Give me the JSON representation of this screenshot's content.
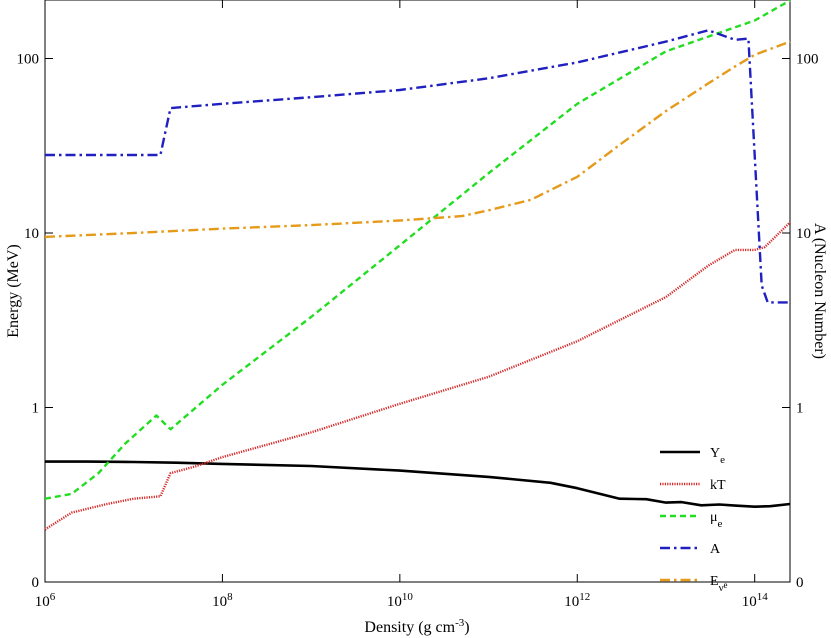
{
  "chart_data": {
    "type": "line",
    "xlabel": "Density (g cm",
    "xlabel_sup": "-3",
    "xlabel_tail": ")",
    "ylabel_left": "Energy (MeV)",
    "ylabel_right": "A (Nucleon Number)",
    "x_scale": "log",
    "y_scale": "log (zero at bottom)",
    "xlim": [
      1000000,
      250000000000000
    ],
    "x_ticks": [
      {
        "base": "10",
        "exp": "6",
        "value": 1000000
      },
      {
        "base": "10",
        "exp": "8",
        "value": 100000000
      },
      {
        "base": "10",
        "exp": "10",
        "value": 10000000000
      },
      {
        "base": "10",
        "exp": "12",
        "value": 1000000000000
      },
      {
        "base": "10",
        "exp": "14",
        "value": 100000000000000
      }
    ],
    "y_ticks_left": [
      {
        "label": "0",
        "value": 0
      },
      {
        "label": "1",
        "value": 1
      },
      {
        "label": "10",
        "value": 10
      },
      {
        "label": "100",
        "value": 100
      }
    ],
    "y_ticks_right": [
      {
        "label": "0",
        "value": 0
      },
      {
        "label": "1",
        "value": 1
      },
      {
        "label": "10",
        "value": 10
      },
      {
        "label": "100",
        "value": 100
      }
    ],
    "grid": false,
    "legend_placement": "lower-right",
    "series": [
      {
        "name": "Y",
        "name_sub": "e",
        "name_subsub": "",
        "color": "#000000",
        "dash": "solid",
        "x": [
          1000000.0,
          3000000.0,
          10000000.0,
          30000000.0,
          100000000.0,
          1000000000.0,
          10000000000.0,
          100000000000.0,
          500000000000.0,
          1000000000000.0,
          3000000000000.0,
          6000000000000.0,
          10000000000000.0,
          15000000000000.0,
          25000000000000.0,
          40000000000000.0,
          60000000000000.0,
          100000000000000.0,
          150000000000000.0,
          250000000000000.0
        ],
        "y": [
          0.49,
          0.49,
          0.487,
          0.483,
          0.475,
          0.462,
          0.435,
          0.4,
          0.37,
          0.345,
          0.3,
          0.298,
          0.285,
          0.287,
          0.275,
          0.278,
          0.274,
          0.27,
          0.272,
          0.28
        ]
      },
      {
        "name": "kT",
        "name_sub": "",
        "name_subsub": "",
        "color": "#d62728",
        "dash": "dotted",
        "x": [
          1000000.0,
          2000000.0,
          5000000.0,
          10000000.0,
          20000000.0,
          26000000.0,
          50000000.0,
          100000000.0,
          1000000000.0,
          10000000000.0,
          100000000000.0,
          1000000000000.0,
          10000000000000.0,
          30000000000000.0,
          60000000000000.0,
          100000000000000.0,
          130000000000000.0,
          250000000000000.0
        ],
        "y": [
          0.2,
          0.25,
          0.28,
          0.3,
          0.31,
          0.42,
          0.46,
          0.52,
          0.72,
          1.05,
          1.5,
          2.4,
          4.3,
          6.5,
          8.0,
          8.0,
          8.3,
          11.5
        ]
      },
      {
        "name": "μ",
        "name_sub": "e",
        "name_subsub": "",
        "color": "#22dd22",
        "dash": "dashed",
        "x": [
          1000000.0,
          2000000.0,
          4000000.0,
          8000000.0,
          18000000.0,
          26000000.0,
          100000000.0,
          1000000000.0,
          10000000000.0,
          100000000000.0,
          1000000000000.0,
          10000000000000.0,
          100000000000000.0,
          250000000000000.0
        ],
        "y": [
          0.3,
          0.32,
          0.42,
          0.62,
          0.9,
          0.75,
          1.35,
          3.3,
          8.5,
          22,
          55,
          110,
          165,
          215
        ]
      },
      {
        "name": "A",
        "name_sub": "",
        "name_subsub": "",
        "color": "#2020c0",
        "dash": "dashdot",
        "x": [
          1000000.0,
          20000000.0,
          26000000.0,
          100000000.0,
          1000000000.0,
          10000000000.0,
          100000000000.0,
          1000000000000.0,
          10000000000000.0,
          30000000000000.0,
          60000000000000.0,
          85000000000000.0,
          120000000000000.0,
          140000000000000.0,
          250000000000000.0
        ],
        "y": [
          28,
          28,
          52,
          55,
          60,
          66,
          77,
          95,
          125,
          145,
          128,
          130,
          5,
          4,
          4
        ]
      },
      {
        "name": "E",
        "name_sub": "ν",
        "name_subsub": "e",
        "color": "#e69a1a",
        "dash": "dashdot",
        "x": [
          1000000.0,
          10000000.0,
          100000000.0,
          1000000000.0,
          10000000000.0,
          50000000000.0,
          100000000000.0,
          300000000000.0,
          1000000000000.0,
          3000000000000.0,
          10000000000000.0,
          30000000000000.0,
          60000000000000.0,
          100000000000000.0,
          250000000000000.0
        ],
        "y": [
          9.5,
          10,
          10.6,
          11.1,
          11.8,
          12.5,
          13.5,
          15.5,
          21,
          32,
          50,
          72,
          90,
          105,
          125
        ]
      }
    ]
  }
}
